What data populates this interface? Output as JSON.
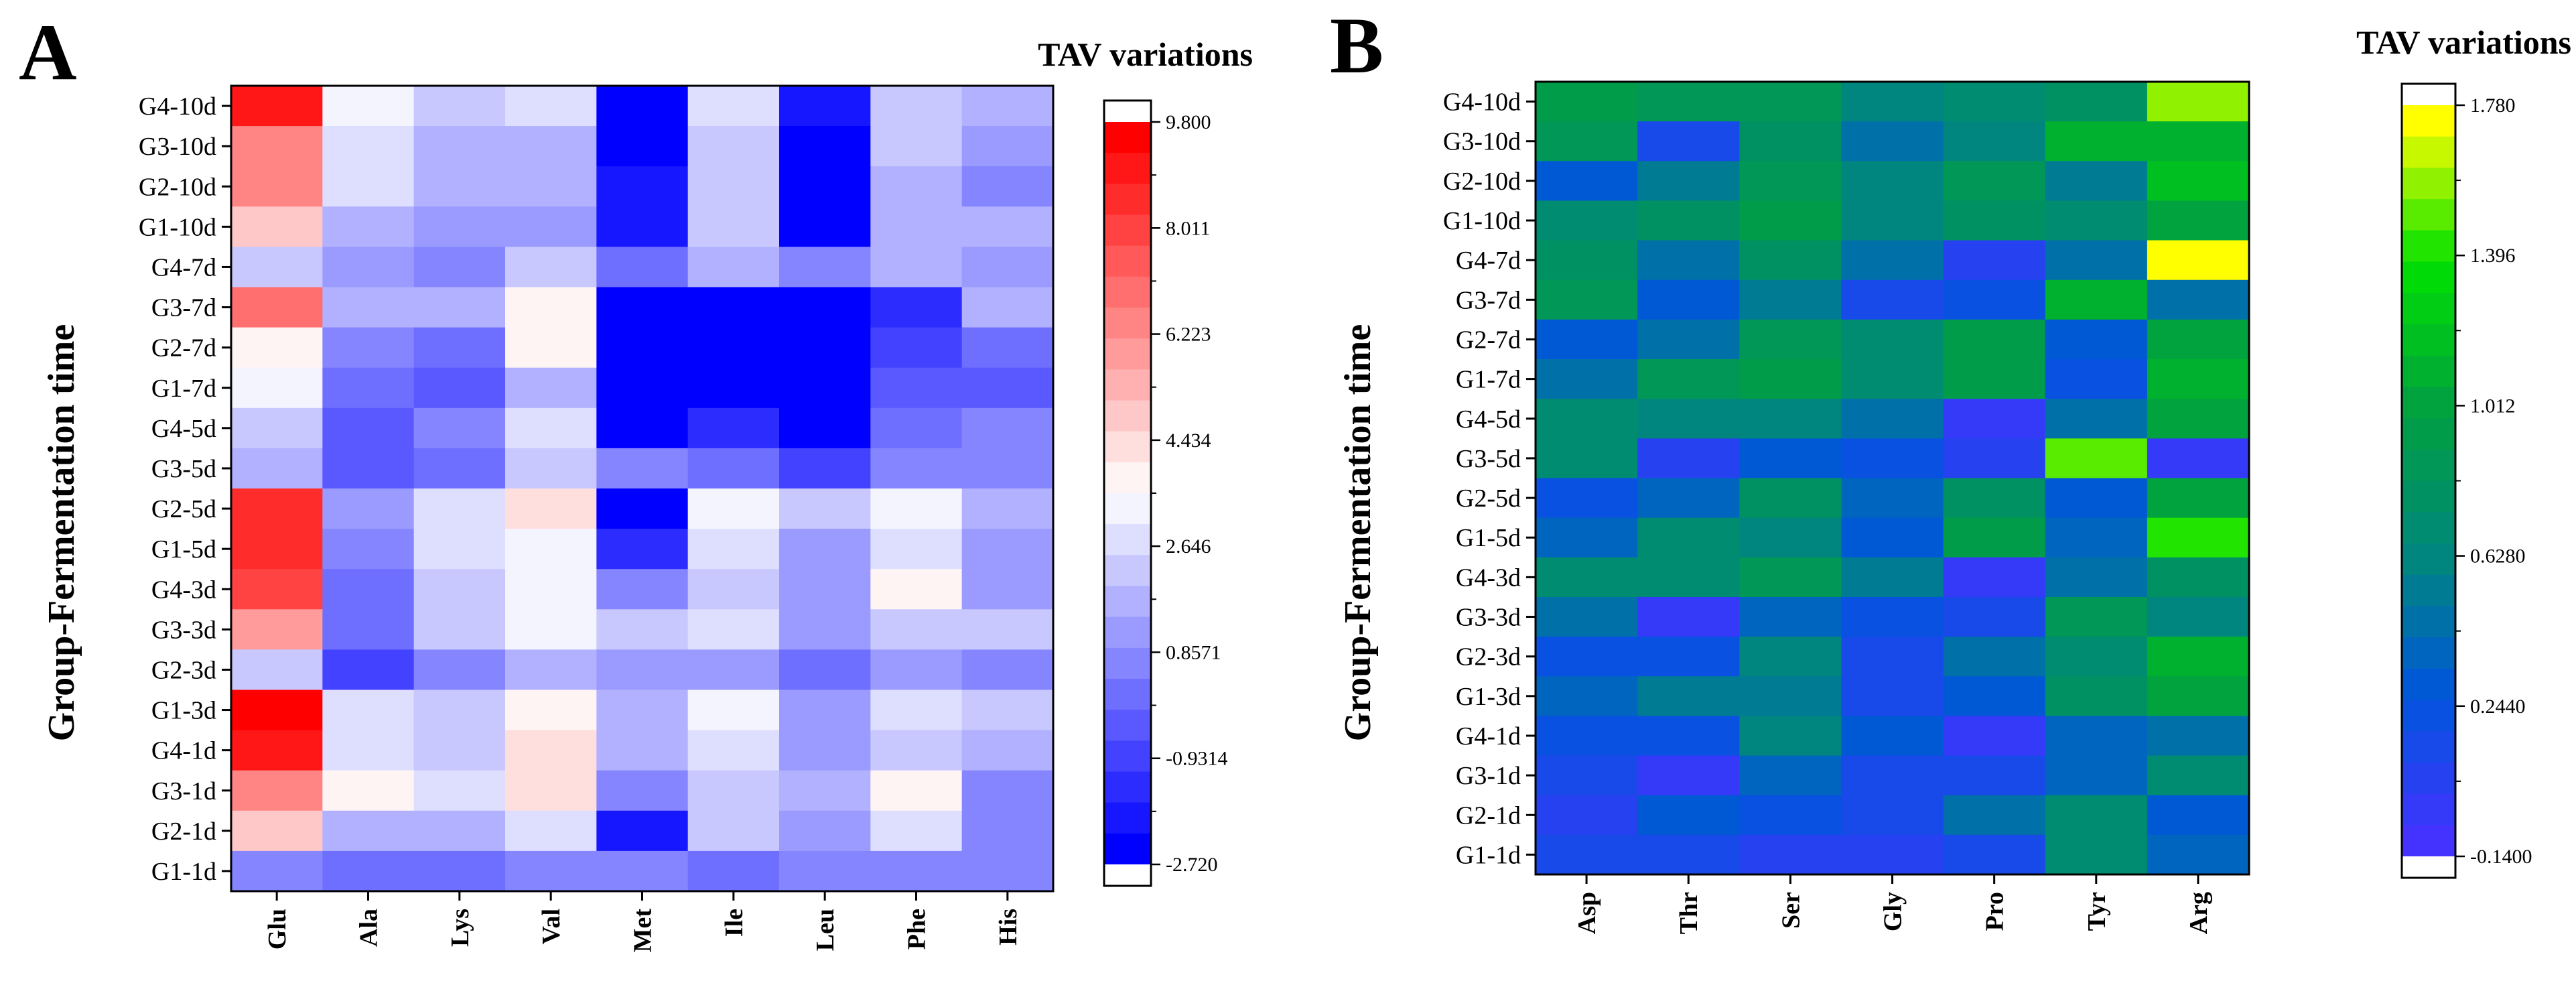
{
  "chart_data": [
    {
      "type": "heatmap",
      "panel": "A",
      "title": "TAV variations",
      "ylabel": "Group-Fermentation time",
      "xlabel": "",
      "columns": [
        "Glu",
        "Ala",
        "Lys",
        "Val",
        "Met",
        "Ile",
        "Leu",
        "Phe",
        "His"
      ],
      "rows": [
        "G4-10d",
        "G3-10d",
        "G2-10d",
        "G1-10d",
        "G4-7d",
        "G3-7d",
        "G2-7d",
        "G1-7d",
        "G4-5d",
        "G3-5d",
        "G2-5d",
        "G1-5d",
        "G4-3d",
        "G3-3d",
        "G2-3d",
        "G1-3d",
        "G4-1d",
        "G3-1d",
        "G2-1d",
        "G1-1d"
      ],
      "values": [
        [
          9.0,
          3.5,
          2.0,
          3.0,
          -2.7,
          2.8,
          -2.0,
          2.3,
          1.9
        ],
        [
          6.5,
          2.6,
          1.7,
          1.8,
          -2.72,
          2.4,
          -2.3,
          2.0,
          1.2
        ],
        [
          6.4,
          2.9,
          1.8,
          1.5,
          -1.9,
          2.2,
          -2.3,
          1.7,
          0.9
        ],
        [
          4.8,
          1.8,
          1.2,
          1.3,
          -1.8,
          2.2,
          -2.2,
          1.7,
          1.5
        ],
        [
          2.3,
          1.2,
          0.9,
          2.1,
          0.3,
          1.6,
          0.6,
          1.5,
          1.3
        ],
        [
          7.1,
          1.5,
          1.9,
          3.8,
          -2.4,
          -2.3,
          -2.6,
          -1.6,
          1.6
        ],
        [
          3.7,
          0.7,
          0.4,
          3.9,
          -2.65,
          -2.4,
          -2.6,
          -0.8,
          0.4
        ],
        [
          3.5,
          0.1,
          -0.6,
          1.6,
          -2.5,
          -2.2,
          -2.6,
          -0.6,
          -0.5
        ],
        [
          2.3,
          -0.3,
          0.5,
          2.6,
          -2.2,
          -1.5,
          -2.2,
          0.0,
          0.7
        ],
        [
          1.8,
          -0.2,
          0.3,
          2.3,
          0.8,
          0.4,
          -1.0,
          0.9,
          0.6
        ],
        [
          8.3,
          1.1,
          3.0,
          4.2,
          -2.72,
          3.5,
          2.3,
          3.5,
          1.5
        ],
        [
          8.3,
          0.8,
          2.5,
          3.5,
          -1.4,
          2.8,
          1.4,
          3.0,
          1.4
        ],
        [
          8.0,
          0.0,
          2.1,
          3.5,
          0.6,
          2.3,
          1.1,
          3.6,
          1.4
        ],
        [
          5.8,
          0.0,
          2.0,
          3.4,
          2.1,
          2.5,
          1.2,
          2.1,
          2.2
        ],
        [
          2.2,
          -0.9,
          0.5,
          1.8,
          1.3,
          1.0,
          0.1,
          1.2,
          0.6
        ],
        [
          9.7,
          2.6,
          2.1,
          3.6,
          1.6,
          3.4,
          1.0,
          3.0,
          2.2
        ],
        [
          9.1,
          2.6,
          2.4,
          4.2,
          1.8,
          2.9,
          1.2,
          2.4,
          1.9
        ],
        [
          6.6,
          3.7,
          2.9,
          4.3,
          0.6,
          2.4,
          1.5,
          3.6,
          0.9
        ],
        [
          5.0,
          1.5,
          1.7,
          2.8,
          -1.9,
          2.1,
          1.0,
          2.5,
          0.8
        ],
        [
          0.9,
          0.3,
          0.3,
          0.5,
          0.5,
          0.3,
          0.5,
          0.6,
          0.5
        ]
      ],
      "colorbar": {
        "min": -2.72,
        "max": 9.8,
        "ticks": [
          9.8,
          8.011,
          6.223,
          4.434,
          2.646,
          0.8571,
          -0.9314,
          -2.72
        ],
        "tick_labels": [
          "9.800",
          "8.011",
          "6.223",
          "4.434",
          "2.646",
          "0.8571",
          "-0.9314",
          "-2.720"
        ],
        "colors": [
          "#0000ff",
          "#ffffff",
          "#ff0000"
        ]
      }
    },
    {
      "type": "heatmap",
      "panel": "B",
      "title": "TAV variations",
      "ylabel": "Group-Fermentation time",
      "xlabel": "",
      "columns": [
        "Asp",
        "Thr",
        "Ser",
        "Gly",
        "Pro",
        "Tyr",
        "Arg"
      ],
      "rows": [
        "G4-10d",
        "G3-10d",
        "G2-10d",
        "G1-10d",
        "G4-7d",
        "G3-7d",
        "G2-7d",
        "G1-7d",
        "G4-5d",
        "G3-5d",
        "G2-5d",
        "G1-5d",
        "G4-3d",
        "G3-3d",
        "G2-3d",
        "G1-3d",
        "G4-1d",
        "G3-1d",
        "G2-1d",
        "G1-1d"
      ],
      "values": [
        [
          0.9,
          0.82,
          0.85,
          0.62,
          0.7,
          0.8,
          1.55
        ],
        [
          0.85,
          0.16,
          0.78,
          0.48,
          0.62,
          1.08,
          1.12
        ],
        [
          0.3,
          0.55,
          0.88,
          0.6,
          0.88,
          0.55,
          1.15
        ],
        [
          0.72,
          0.75,
          0.9,
          0.65,
          0.78,
          0.72,
          0.98
        ],
        [
          0.8,
          0.45,
          0.8,
          0.44,
          0.02,
          0.44,
          1.78
        ],
        [
          0.88,
          0.28,
          0.5,
          0.16,
          0.25,
          1.06,
          0.44
        ],
        [
          0.3,
          0.48,
          0.85,
          0.66,
          0.9,
          0.32,
          1.02
        ],
        [
          0.46,
          0.82,
          0.9,
          0.66,
          0.96,
          0.18,
          1.08
        ],
        [
          0.7,
          0.63,
          0.63,
          0.44,
          0.0,
          0.44,
          0.98
        ],
        [
          0.7,
          0.05,
          0.3,
          0.2,
          0.08,
          1.46,
          -0.05
        ],
        [
          0.2,
          0.38,
          0.8,
          0.4,
          0.75,
          0.28,
          0.98
        ],
        [
          0.36,
          0.68,
          0.58,
          0.32,
          0.9,
          0.4,
          1.38
        ],
        [
          0.7,
          0.66,
          0.86,
          0.5,
          -0.02,
          0.48,
          0.78
        ],
        [
          0.46,
          0.0,
          0.34,
          0.2,
          0.1,
          0.86,
          0.62
        ],
        [
          0.2,
          0.22,
          0.58,
          0.14,
          0.46,
          0.66,
          1.12
        ],
        [
          0.34,
          0.5,
          0.5,
          0.16,
          0.32,
          0.74,
          0.98
        ],
        [
          0.18,
          0.18,
          0.64,
          0.3,
          -0.04,
          0.38,
          0.48
        ],
        [
          0.14,
          -0.06,
          0.38,
          0.12,
          0.1,
          0.4,
          0.7
        ],
        [
          0.04,
          0.3,
          0.18,
          0.1,
          0.46,
          0.66,
          0.3
        ],
        [
          0.1,
          0.12,
          0.06,
          0.04,
          0.14,
          0.66,
          0.38
        ]
      ],
      "colorbar": {
        "min": -0.14,
        "max": 1.78,
        "ticks": [
          1.78,
          1.396,
          1.012,
          0.628,
          0.244,
          -0.14
        ],
        "tick_labels": [
          "1.780",
          "1.396",
          "1.012",
          "0.6280",
          "0.2440",
          "-0.1400"
        ],
        "colors": [
          "#4433ff",
          "#0055dd",
          "#00887a",
          "#00a040",
          "#00e000",
          "#ffff00"
        ]
      }
    }
  ]
}
